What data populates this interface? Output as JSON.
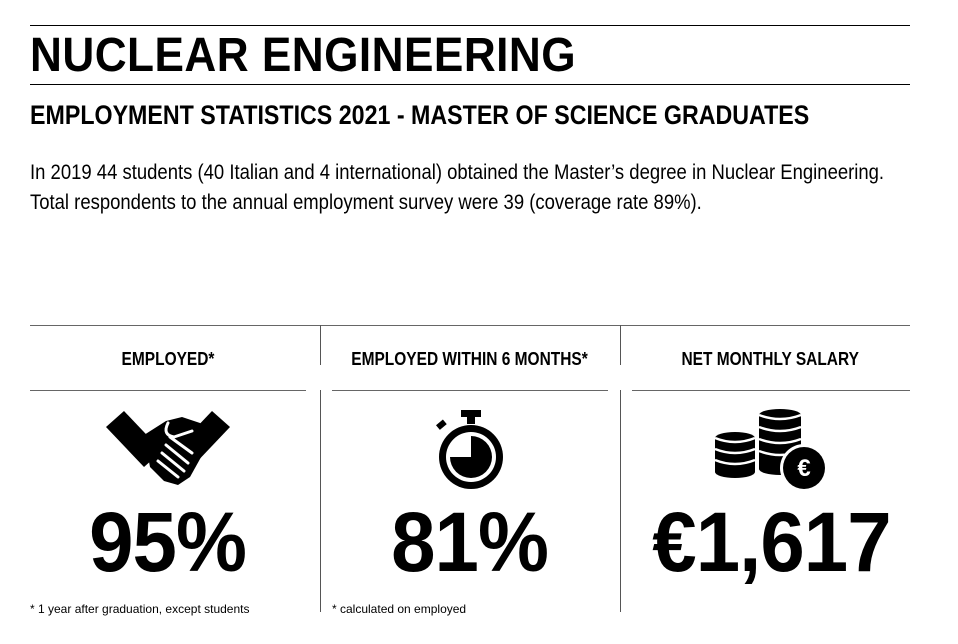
{
  "header": {
    "title": "NUCLEAR ENGINEERING",
    "subtitle": "EMPLOYMENT STATISTICS 2021 - MASTER OF SCIENCE GRADUATES"
  },
  "intro": {
    "line1": "In 2019 44 students (40 Italian and 4 international) obtained the Master’s degree in Nuclear Engineering.",
    "line2": "Total respondents to the annual employment survey were 39 (coverage rate 89%)."
  },
  "stats": {
    "employed": {
      "label": "EMPLOYED*",
      "value": "95%",
      "icon": "handshake-icon",
      "note": "* 1 year after graduation, except students"
    },
    "employed_6m": {
      "label": "EMPLOYED WITHIN 6 MONTHS*",
      "value": "81%",
      "icon": "stopwatch-icon",
      "note": "* calculated on employed"
    },
    "salary": {
      "label": "NET MONTHLY SALARY",
      "value": "€1,617",
      "icon": "euro-coins-icon"
    }
  }
}
